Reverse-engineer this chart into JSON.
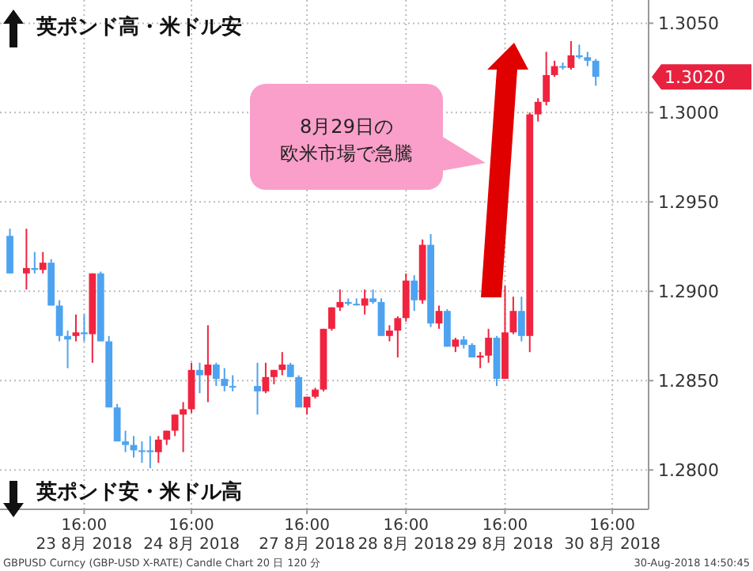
{
  "chart_data": {
    "type": "candlestick",
    "categories": [
      null,
      null,
      null,
      null,
      null,
      null,
      null,
      null,
      null,
      "16:00 23 8月 2018",
      null,
      null,
      null,
      null,
      null,
      null,
      null,
      null,
      null,
      null,
      null,
      null,
      "16:00 24 8月 2018",
      null,
      null,
      null,
      null,
      null,
      null,
      null,
      null,
      null,
      null,
      null,
      null,
      null,
      "16:00 27 8月 2018",
      null,
      null,
      null,
      null,
      null,
      null,
      null,
      null,
      null,
      null,
      null,
      "16:00 28 8月 2018",
      null,
      null,
      null,
      null,
      null,
      null,
      null,
      null,
      null,
      null,
      null,
      "16:00 29 8月 2018",
      null,
      null,
      null,
      null,
      null,
      null,
      null,
      null,
      null,
      null,
      null,
      null,
      "16:00 30 8月 2018"
    ],
    "ohlc": [
      [
        1.2931,
        1.2935,
        1.291,
        1.291
      ],
      null,
      [
        1.291,
        1.2935,
        1.2901,
        1.2913
      ],
      [
        1.2913,
        1.2922,
        1.291,
        1.2912
      ],
      [
        1.2912,
        1.2922,
        1.291,
        1.2916
      ],
      [
        1.2916,
        1.2918,
        1.2892,
        1.2892
      ],
      [
        1.2892,
        1.2895,
        1.2872,
        1.2875
      ],
      [
        1.2875,
        1.2878,
        1.2857,
        1.2873
      ],
      [
        1.2875,
        1.2887,
        1.2872,
        1.2877
      ],
      [
        1.2877,
        1.2887,
        1.2872,
        1.2876
      ],
      [
        1.2876,
        1.291,
        1.286,
        1.291
      ],
      [
        1.291,
        1.2911,
        1.2872,
        1.2872
      ],
      [
        1.2872,
        1.2875,
        1.2835,
        1.2835
      ],
      [
        1.2835,
        1.2837,
        1.2816,
        1.2816
      ],
      [
        1.2816,
        1.2822,
        1.281,
        1.2814
      ],
      [
        1.2814,
        1.2819,
        1.2807,
        1.2811
      ],
      [
        1.2811,
        1.2816,
        1.2804,
        1.2811
      ],
      [
        1.2811,
        1.2819,
        1.2801,
        1.281
      ],
      [
        1.281,
        1.2819,
        1.2804,
        1.2817
      ],
      [
        1.2817,
        1.2822,
        1.2814,
        1.2822
      ],
      [
        1.2822,
        1.2831,
        1.2819,
        1.2831
      ],
      [
        1.2831,
        1.2838,
        1.281,
        1.2834
      ],
      [
        1.2834,
        1.286,
        1.2832,
        1.2856
      ],
      [
        1.2856,
        1.286,
        1.2843,
        1.2853
      ],
      [
        1.2853,
        1.2881,
        1.2838,
        1.2859
      ],
      [
        1.2859,
        1.286,
        1.2847,
        1.2851
      ],
      [
        1.2851,
        1.2857,
        1.2844,
        1.2847
      ],
      [
        1.2847,
        1.2853,
        1.2844,
        1.2847
      ],
      null,
      null,
      [
        1.2847,
        1.286,
        1.2831,
        1.2844
      ],
      [
        1.2844,
        1.286,
        1.2843,
        1.2852
      ],
      [
        1.2852,
        1.2856,
        1.2848,
        1.2856
      ],
      [
        1.2856,
        1.2866,
        1.2853,
        1.2859
      ],
      [
        1.2859,
        1.286,
        1.2852,
        1.2852
      ],
      [
        1.2852,
        1.2853,
        1.2835,
        1.2835
      ],
      [
        1.2835,
        1.2841,
        1.2831,
        1.2841
      ],
      [
        1.2841,
        1.2846,
        1.284,
        1.2845
      ],
      [
        1.2845,
        1.2879,
        1.2844,
        1.2879
      ],
      [
        1.2879,
        1.2891,
        1.2878,
        1.2891
      ],
      [
        1.2891,
        1.2901,
        1.2889,
        1.2894
      ],
      [
        1.2894,
        1.2896,
        1.2892,
        1.2893
      ],
      [
        1.2893,
        1.2896,
        1.2892,
        1.2893
      ],
      [
        1.2892,
        1.2901,
        1.2887,
        1.2896
      ],
      [
        1.2896,
        1.2901,
        1.2893,
        1.2894
      ],
      [
        1.2894,
        1.2896,
        1.2875,
        1.2875
      ],
      [
        1.2875,
        1.2881,
        1.2872,
        1.2878
      ],
      [
        1.2878,
        1.2886,
        1.2863,
        1.2885
      ],
      [
        1.2885,
        1.291,
        1.2883,
        1.2906
      ],
      [
        1.2906,
        1.2909,
        1.2889,
        1.2895
      ],
      [
        1.2895,
        1.2929,
        1.2893,
        1.2926
      ],
      [
        1.2926,
        1.2932,
        1.288,
        1.2882
      ],
      [
        1.2882,
        1.2892,
        1.2879,
        1.2889
      ],
      [
        1.2889,
        1.289,
        1.2869,
        1.2869
      ],
      [
        1.2869,
        1.2874,
        1.2866,
        1.2873
      ],
      [
        1.2873,
        1.2875,
        1.2868,
        1.287
      ],
      [
        1.287,
        1.2871,
        1.2863,
        1.2863
      ],
      [
        1.2863,
        1.2866,
        1.2857,
        1.2864
      ],
      [
        1.2864,
        1.2879,
        1.286,
        1.2874
      ],
      [
        1.2874,
        1.2875,
        1.2847,
        1.2851
      ],
      [
        1.2851,
        1.2903,
        1.2851,
        1.2877
      ],
      [
        1.2877,
        1.2897,
        1.2876,
        1.2889
      ],
      [
        1.2889,
        1.2897,
        1.2872,
        1.2875
      ],
      [
        1.2875,
        1.3,
        1.2866,
        1.2999
      ],
      [
        1.2999,
        1.3008,
        1.2995,
        1.3006
      ],
      [
        1.3006,
        1.3034,
        1.3004,
        1.3021
      ],
      [
        1.3021,
        1.3029,
        1.302,
        1.3026
      ],
      [
        1.3026,
        1.3028,
        1.3024,
        1.3026
      ],
      [
        1.3025,
        1.304,
        1.3024,
        1.3032
      ],
      [
        1.3032,
        1.3038,
        1.303,
        1.3031
      ],
      [
        1.3031,
        1.3034,
        1.3026,
        1.3029
      ],
      [
        1.3029,
        1.303,
        1.3015,
        1.302
      ],
      null,
      null
    ],
    "colors": [
      "#4da3f0",
      null,
      "#f0243f",
      "#4da3f0",
      "#f0243f",
      "#4da3f0",
      "#4da3f0",
      "#4da3f0",
      "#f0243f",
      "#4da3f0",
      "#f0243f",
      "#4da3f0",
      "#4da3f0",
      "#4da3f0",
      "#4da3f0",
      "#4da3f0",
      "#4da3f0",
      "#4da3f0",
      "#f0243f",
      "#f0243f",
      "#f0243f",
      "#f0243f",
      "#f0243f",
      "#4da3f0",
      "#f0243f",
      "#4da3f0",
      "#4da3f0",
      "#4da3f0",
      null,
      null,
      "#4da3f0",
      "#f0243f",
      "#f0243f",
      "#f0243f",
      "#4da3f0",
      "#4da3f0",
      "#f0243f",
      "#f0243f",
      "#f0243f",
      "#f0243f",
      "#f0243f",
      "#4da3f0",
      "#4da3f0",
      "#f0243f",
      "#4da3f0",
      "#4da3f0",
      "#f0243f",
      "#f0243f",
      "#f0243f",
      "#4da3f0",
      "#f0243f",
      "#4da3f0",
      "#f0243f",
      "#4da3f0",
      "#f0243f",
      "#4da3f0",
      "#4da3f0",
      "#f0243f",
      "#f0243f",
      "#4da3f0",
      "#f0243f",
      "#f0243f",
      "#4da3f0",
      "#f0243f",
      "#f0243f",
      "#f0243f",
      "#f0243f",
      "#4da3f0",
      "#f0243f",
      "#4da3f0",
      "#4da3f0",
      "#4da3f0",
      null,
      null
    ],
    "ylim": [
      1.2778,
      1.3063
    ],
    "yticks": [
      {
        "value": 1.28,
        "label": "1.2800"
      },
      {
        "value": 1.285,
        "label": "1.2850"
      },
      {
        "value": 1.29,
        "label": "1.2900"
      },
      {
        "value": 1.295,
        "label": "1.2950"
      },
      {
        "value": 1.3,
        "label": "1.3000"
      },
      {
        "value": 1.305,
        "label": "1.3050"
      }
    ],
    "grid": true,
    "annotations": [
      "英ポンド高・米ドル安",
      "英ポンド安・米ドル高",
      "8月29日の欧米市場で急騰",
      "1.3020",
      "GBPUSD Curncy (GBP-USD X-RATE) Candle Chart 20 日 120 分",
      "30-Aug-2018 14:50:45"
    ]
  }
}
